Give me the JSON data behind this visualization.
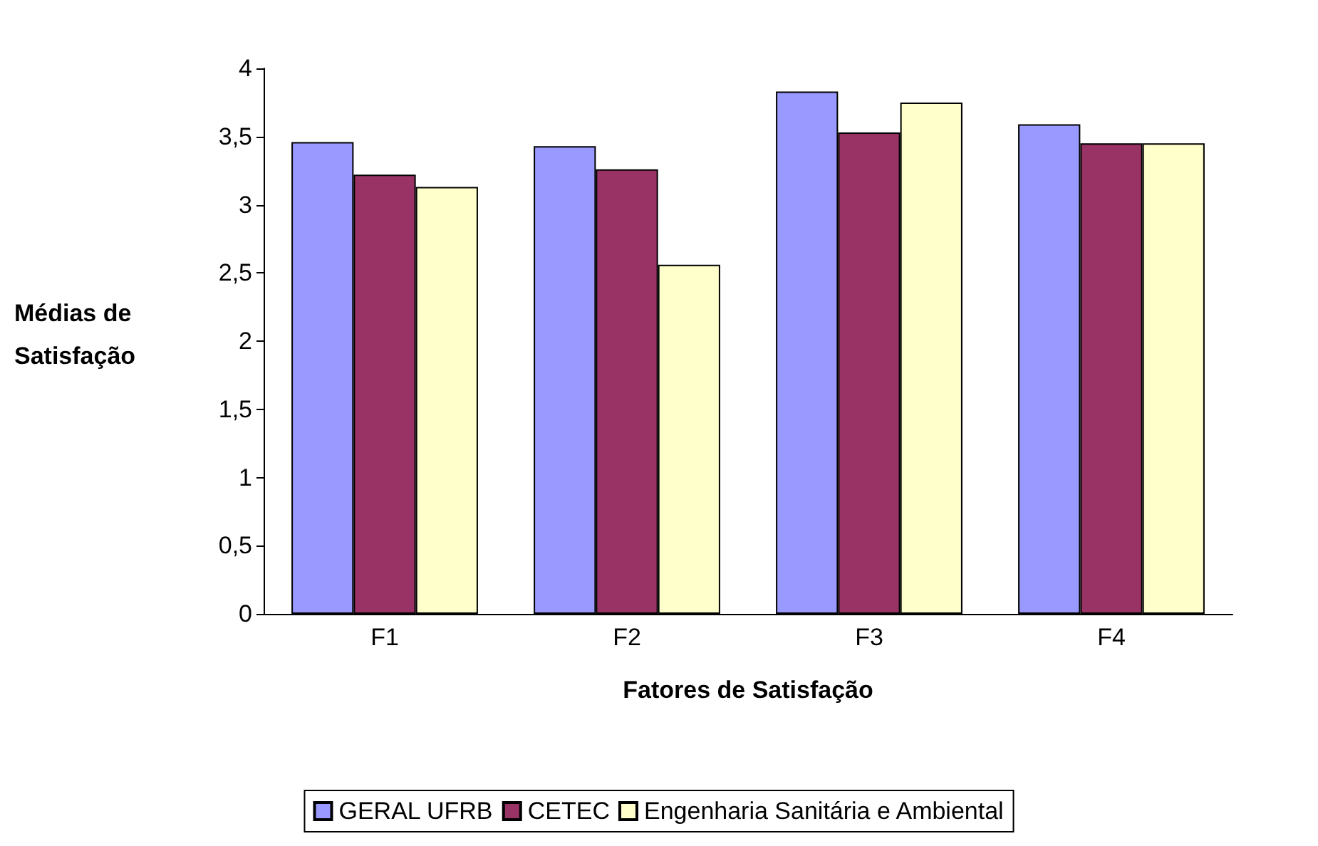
{
  "chart_data": {
    "type": "bar",
    "xlabel": "Fatores de Satisfação",
    "ylabel": "Médias de Satisfação",
    "categories": [
      "F1",
      "F2",
      "F3",
      "F4"
    ],
    "series": [
      {
        "name": "GERAL UFRB",
        "color": "#9999ff",
        "values": [
          3.46,
          3.43,
          3.83,
          3.59
        ]
      },
      {
        "name": "CETEC",
        "color": "#993366",
        "values": [
          3.22,
          3.26,
          3.53,
          3.45
        ]
      },
      {
        "name": "Engenharia Sanitária e Ambiental",
        "color": "#ffffcc",
        "values": [
          3.13,
          2.56,
          3.75,
          3.45
        ]
      }
    ],
    "ylim": [
      0,
      4
    ],
    "yticks": [
      0,
      {
        "value": 0.5,
        "label": "0,5"
      },
      1,
      {
        "value": 1.5,
        "label": "1,5"
      },
      2,
      {
        "value": 2.5,
        "label": "2,5"
      },
      3,
      {
        "value": 3.5,
        "label": "3,5"
      },
      4
    ],
    "grid": false,
    "legend": "bottom"
  }
}
